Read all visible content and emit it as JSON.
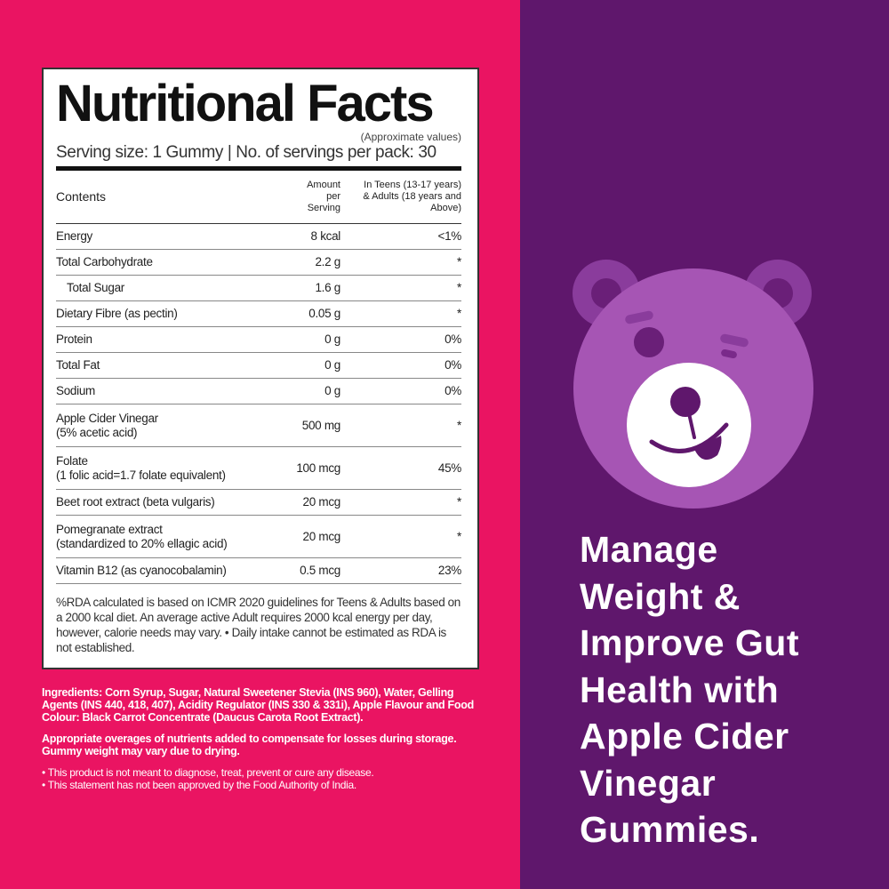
{
  "colors": {
    "left_bg": "#ea1462",
    "right_bg": "#5f176c",
    "bear_face": "#a655b4",
    "bear_ear": "#8a3c9c",
    "muzzle": "#ffffff"
  },
  "label": {
    "title": "Nutritional Facts",
    "approx": "(Approximate values)",
    "serving": "Serving size: 1 Gummy | No. of servings per pack: 30",
    "headers": {
      "contents": "Contents",
      "amount": "Amount per Serving",
      "rda": "In Teens (13-17 years) & Adults (18 years and Above)"
    },
    "rows": [
      {
        "name": "Energy",
        "amount": "8 kcal",
        "rda": "<1%"
      },
      {
        "name": "Total Carbohydrate",
        "amount": "2.2 g",
        "rda": "*"
      },
      {
        "name": "Total Sugar",
        "amount": "1.6 g",
        "rda": "*"
      },
      {
        "name": "Dietary Fibre (as pectin)",
        "amount": "0.05 g",
        "rda": "*"
      },
      {
        "name": "Protein",
        "amount": "0 g",
        "rda": "0%"
      },
      {
        "name": "Total Fat",
        "amount": "0 g",
        "rda": "0%"
      },
      {
        "name": "Sodium",
        "amount": "0 g",
        "rda": "0%"
      },
      {
        "name": "Apple Cider Vinegar",
        "sub": "(5% acetic acid)",
        "amount": "500 mg",
        "rda": "*"
      },
      {
        "name": "Folate",
        "sub": "(1 folic acid=1.7 folate equivalent)",
        "amount": "100 mcg",
        "rda": "45%"
      },
      {
        "name": "Beet root extract (beta vulgaris)",
        "amount": "20 mcg",
        "rda": "*"
      },
      {
        "name": "Pomegranate extract",
        "sub": "(standardized to 20% ellagic acid)",
        "amount": "20 mcg",
        "rda": "*"
      },
      {
        "name": "Vitamin B12 (as cyanocobalamin)",
        "amount": "0.5 mcg",
        "rda": "23%"
      }
    ],
    "footnote": "%RDA calculated is based on ICMR 2020 guidelines for Teens & Adults based on a 2000 kcal diet. An average active Adult requires 2000 kcal energy per day, however, calorie needs may vary. • Daily intake cannot be estimated as RDA is not established."
  },
  "ingredients": "Ingredients: Corn Syrup, Sugar, Natural Sweetener Stevia (INS 960), Water, Gelling Agents (INS 440, 418, 407), Acidity Regulator (INS 330 & 331i), Apple Flavour and Food Colour: Black Carrot Concentrate (Daucus Carota Root Extract).",
  "overages": "Appropriate overages of nutrients added to compensate for losses during storage. Gummy weight may vary due to drying.",
  "disclaimers": [
    "• This product is not meant to diagnose, treat, prevent or cure any disease.",
    "• This statement has not been approved by the Food Authority of India."
  ],
  "headline": [
    "Manage",
    "Weight &",
    "Improve Gut",
    "Health with",
    "Apple Cider",
    "Vinegar",
    "Gummies."
  ]
}
